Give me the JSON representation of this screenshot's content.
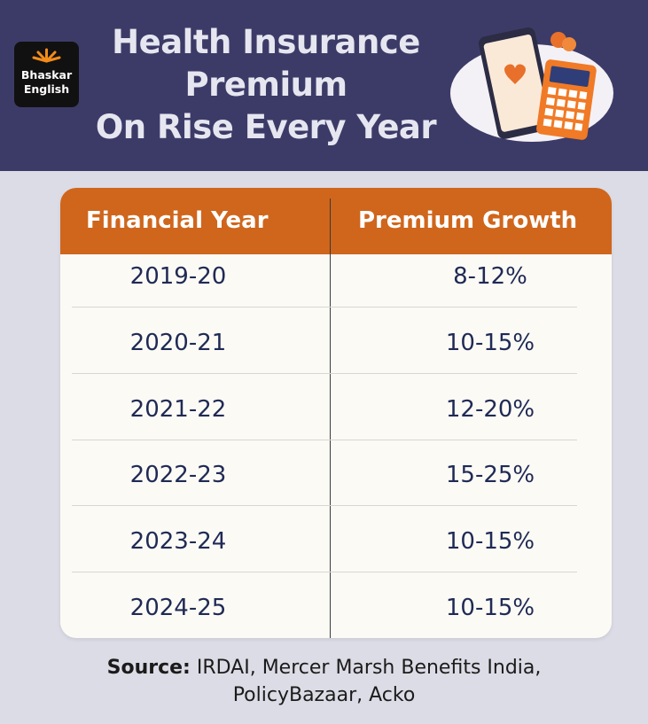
{
  "header": {
    "logo": [
      "Bhaskar",
      "English"
    ],
    "title": [
      "Health Insurance",
      "Premium",
      "On Rise Every Year"
    ]
  },
  "table": {
    "columns": [
      "Financial Year",
      "Premium Growth"
    ],
    "rows": [
      [
        "2019-20",
        "8-12%"
      ],
      [
        "2020-21",
        "10-15%"
      ],
      [
        "2021-22",
        "12-20%"
      ],
      [
        "2022-23",
        "15-25%"
      ],
      [
        "2023-24",
        "10-15%"
      ],
      [
        "2024-25",
        "10-15%"
      ]
    ]
  },
  "source": {
    "label": "Source:",
    "lines": [
      "IRDAI, Mercer Marsh Benefits India,",
      "PolicyBazaar, Acko"
    ]
  }
}
